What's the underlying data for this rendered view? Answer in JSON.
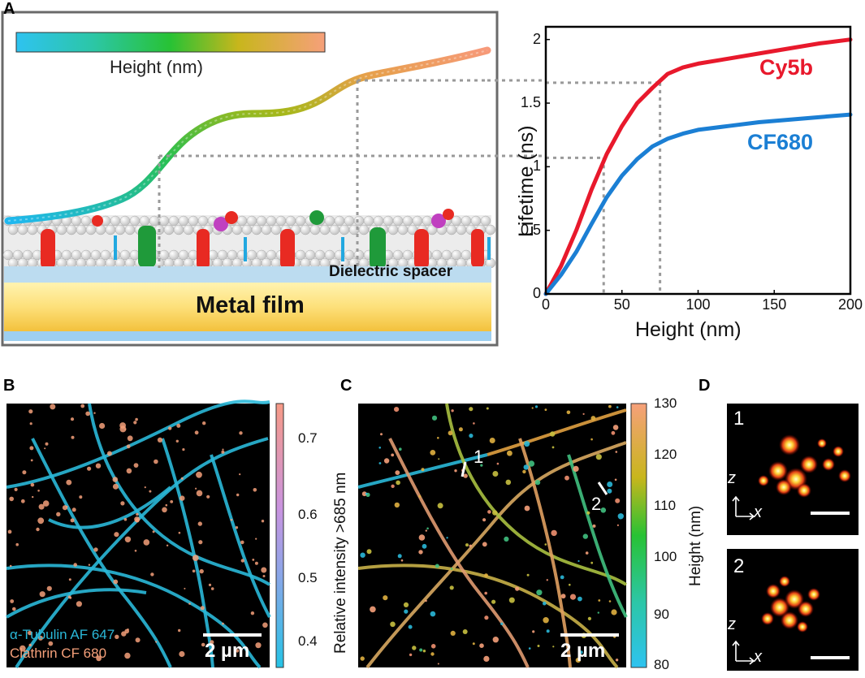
{
  "panels": {
    "a": {
      "letter": "A",
      "colorbar_label": "Height (nm)",
      "dielectric_label": "Dielectric spacer",
      "metal_label": "Metal film"
    },
    "b": {
      "letter": "B",
      "legend_line1": "α-Tubulin AF 647",
      "legend_line2": "Clathrin CF 680",
      "scalebar": "2 µm",
      "colorbar_label": "Relative intensity >685 nm",
      "colorbar_ticks": [
        "0.4",
        "0.5",
        "0.6",
        "0.7"
      ]
    },
    "c": {
      "letter": "C",
      "scalebar": "2 µm",
      "colorbar_label": "Height (nm)",
      "colorbar_ticks": [
        "80",
        "90",
        "100",
        "110",
        "120",
        "130"
      ],
      "marker1": "1",
      "marker2": "2"
    },
    "d": {
      "letter": "D",
      "inset1": "1",
      "inset2": "2",
      "axis_z": "z",
      "axis_x": "x"
    }
  },
  "colors": {
    "cy5b": "#e8192c",
    "cf680": "#1b7fd4",
    "tubulin": "#2ab8d8",
    "clathrin": "#f5a07a"
  },
  "chart_data": {
    "type": "line",
    "xlabel": "Height (nm)",
    "ylabel": "Lifetime (ns)",
    "xlim": [
      0,
      200
    ],
    "ylim": [
      0,
      2.1
    ],
    "xticks": [
      0,
      50,
      100,
      150,
      200
    ],
    "yticks": [
      0,
      0.5,
      1,
      1.5,
      2
    ],
    "xtick_labels": [
      "0",
      "50",
      "100",
      "150",
      "200"
    ],
    "ytick_labels": [
      "0",
      "0.5",
      "1",
      "1.5",
      "2"
    ],
    "series": [
      {
        "name": "Cy5b",
        "x": [
          0,
          10,
          20,
          30,
          40,
          50,
          60,
          70,
          80,
          90,
          100,
          120,
          140,
          160,
          180,
          200
        ],
        "y": [
          0,
          0.22,
          0.5,
          0.82,
          1.1,
          1.32,
          1.5,
          1.62,
          1.73,
          1.78,
          1.81,
          1.85,
          1.89,
          1.93,
          1.97,
          2.0
        ]
      },
      {
        "name": "CF680",
        "x": [
          0,
          10,
          20,
          30,
          40,
          50,
          60,
          70,
          80,
          90,
          100,
          120,
          140,
          160,
          180,
          200
        ],
        "y": [
          0,
          0.15,
          0.33,
          0.55,
          0.76,
          0.93,
          1.06,
          1.16,
          1.22,
          1.26,
          1.29,
          1.32,
          1.35,
          1.37,
          1.39,
          1.41
        ]
      }
    ],
    "guide_lines": [
      {
        "x": 38,
        "y": 1.07
      },
      {
        "x": 75,
        "y": 1.66
      }
    ]
  }
}
